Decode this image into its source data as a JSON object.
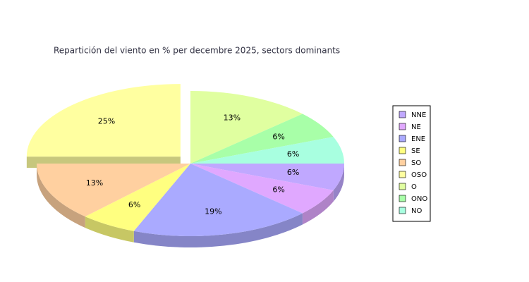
{
  "chart_data": {
    "type": "pie",
    "title": "Repartición del viento en % per decembre 2025, sectors dominants",
    "categories": [
      "NNE",
      "NE",
      "ENE",
      "SE",
      "SO",
      "OSO",
      "O",
      "ONO",
      "NO"
    ],
    "values": [
      6,
      6,
      19,
      6,
      13,
      25,
      13,
      6,
      6
    ],
    "value_labels": [
      "6%",
      "6%",
      "19%",
      "6%",
      "13%",
      "25%",
      "13%",
      "6%",
      "6%"
    ],
    "colors": [
      "#c0a8ff",
      "#e0a8ff",
      "#aaaaff",
      "#ffff80",
      "#ffd0a0",
      "#ffffa0",
      "#e0ffa0",
      "#a8ffa8",
      "#a8ffe0"
    ],
    "exploded": "OSO",
    "legend": "right"
  }
}
